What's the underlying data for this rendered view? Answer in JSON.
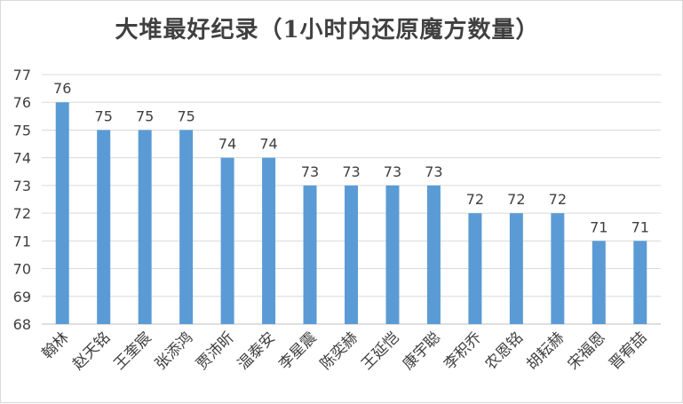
{
  "chart_data": {
    "type": "bar",
    "title": "大堆最好纪录（1小时内还原魔方数量）",
    "xlabel": "",
    "ylabel": "",
    "categories": [
      "翰林",
      "赵天铭",
      "王奎宸",
      "张添鸿",
      "贾沛昕",
      "温泰安",
      "李星震",
      "陈奕赫",
      "王延恺",
      "康宇聪",
      "李积乔",
      "农恩铭",
      "胡耘赫",
      "宋福恩",
      "晋宥喆"
    ],
    "values": [
      76,
      75,
      75,
      75,
      74,
      74,
      73,
      73,
      73,
      73,
      72,
      72,
      72,
      71,
      71
    ],
    "ylim": [
      68,
      77
    ],
    "yticks": [
      68,
      69,
      70,
      71,
      72,
      73,
      74,
      75,
      76,
      77
    ],
    "grid": true,
    "bar_color": "#5B9BD5",
    "grid_color": "#d9d9d9",
    "text_color": "#404040"
  }
}
